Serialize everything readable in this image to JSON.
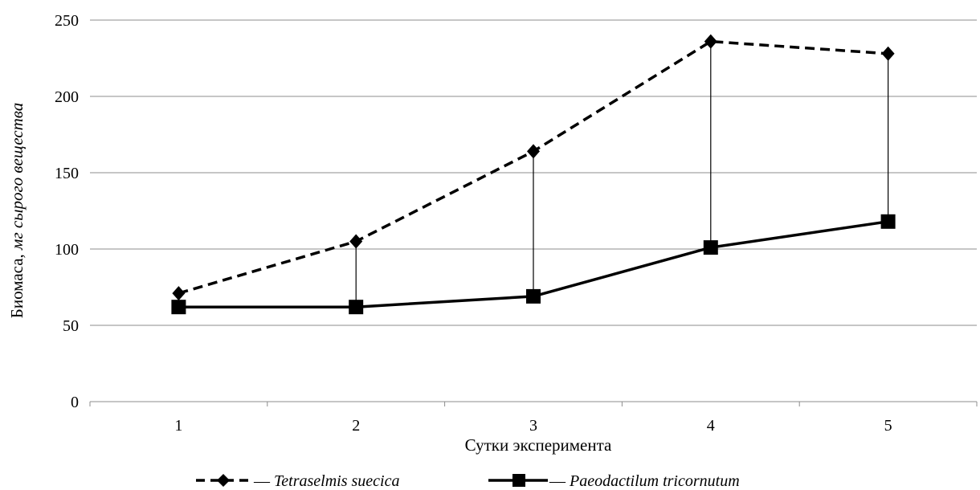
{
  "chart_data": {
    "type": "line",
    "title": "",
    "xlabel": "Сутки эксперимента",
    "ylabel_prefix": "Биомаса, ",
    "ylabel_italic": "мг сырого вещества",
    "categories": [
      "1",
      "2",
      "3",
      "4",
      "5"
    ],
    "ylim": [
      0,
      250
    ],
    "yticks": [
      0,
      50,
      100,
      150,
      200,
      250
    ],
    "grid": "horizontal",
    "legend": "bottom",
    "series": [
      {
        "name": "Tetraselmis suecica",
        "legend_prefix": "— ",
        "values": [
          71,
          105,
          164,
          236,
          228
        ],
        "style": "dashed",
        "marker": "diamond",
        "color": "#000000"
      },
      {
        "name": "Paeodactilum tricornutum",
        "legend_prefix": "— ",
        "values": [
          62,
          62,
          69,
          101,
          118
        ],
        "style": "solid",
        "marker": "square",
        "color": "#000000"
      }
    ],
    "drop_lines": true
  }
}
